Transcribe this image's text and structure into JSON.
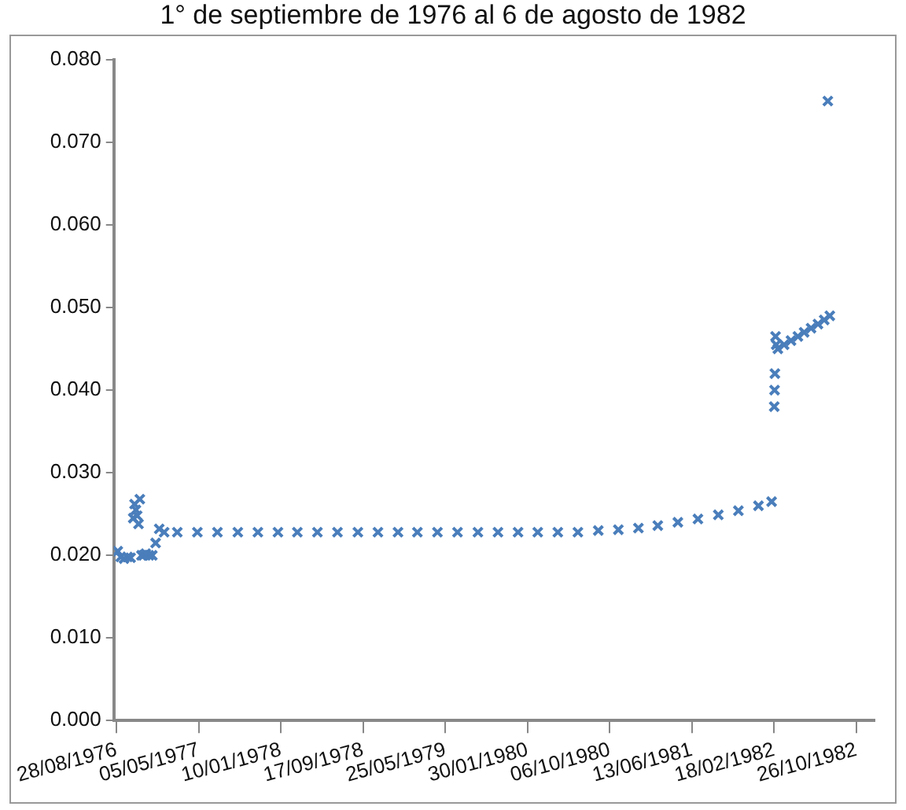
{
  "chart_data": {
    "type": "scatter",
    "title": "1° de septiembre de 1976 al 6 de agosto de 1982",
    "marker": "cross",
    "grid": false,
    "legend": false,
    "xlim": [
      "1976-08-20",
      "1982-12-20"
    ],
    "ylim": [
      0,
      0.08
    ],
    "xticks": [
      {
        "value": "1976-08-28",
        "label": "28/08/1976"
      },
      {
        "value": "1977-05-05",
        "label": "05/05/1977"
      },
      {
        "value": "1978-01-10",
        "label": "10/01/1978"
      },
      {
        "value": "1978-09-17",
        "label": "17/09/1978"
      },
      {
        "value": "1979-05-25",
        "label": "25/05/1979"
      },
      {
        "value": "1980-01-30",
        "label": "30/01/1980"
      },
      {
        "value": "1980-10-06",
        "label": "06/10/1980"
      },
      {
        "value": "1981-06-13",
        "label": "13/06/1981"
      },
      {
        "value": "1982-02-18",
        "label": "18/02/1982"
      },
      {
        "value": "1982-10-26",
        "label": "26/10/1982"
      }
    ],
    "yticks": [
      {
        "value": 0,
        "label": "0.000"
      },
      {
        "value": 0.01,
        "label": "0.010"
      },
      {
        "value": 0.02,
        "label": "0.020"
      },
      {
        "value": 0.03,
        "label": "0.030"
      },
      {
        "value": 0.04,
        "label": "0.040"
      },
      {
        "value": 0.05,
        "label": "0.050"
      },
      {
        "value": 0.06,
        "label": "0.060"
      },
      {
        "value": 0.07,
        "label": "0.070"
      },
      {
        "value": 0.08,
        "label": "0.080"
      }
    ],
    "series": [
      {
        "color": "#4a7ebb",
        "x": [
          "1976-09-01",
          "1976-09-10",
          "1976-09-20",
          "1976-10-01",
          "1976-10-10",
          "1976-10-18",
          "1976-10-22",
          "1976-10-26",
          "1976-10-30",
          "1976-11-03",
          "1976-11-07",
          "1976-11-12",
          "1976-11-18",
          "1976-11-25",
          "1976-12-05",
          "1976-12-15",
          "1976-12-25",
          "1977-01-05",
          "1977-01-20",
          "1977-03-01",
          "1977-05-01",
          "1977-07-01",
          "1977-09-01",
          "1977-11-01",
          "1978-01-01",
          "1978-03-01",
          "1978-05-01",
          "1978-07-01",
          "1978-09-01",
          "1978-11-01",
          "1979-01-01",
          "1979-03-01",
          "1979-05-01",
          "1979-07-01",
          "1979-09-01",
          "1979-11-01",
          "1980-01-01",
          "1980-03-01",
          "1980-05-01",
          "1980-07-01",
          "1980-09-01",
          "1980-11-01",
          "1981-01-01",
          "1981-03-01",
          "1981-05-01",
          "1981-07-01",
          "1981-09-01",
          "1981-11-01",
          "1982-01-01",
          "1982-02-10",
          "1982-02-18",
          "1982-02-19",
          "1982-02-20",
          "1982-02-22",
          "1982-02-24",
          "1982-03-01",
          "1982-03-20",
          "1982-04-10",
          "1982-05-01",
          "1982-05-20",
          "1982-06-10",
          "1982-07-01",
          "1982-07-20",
          "1982-07-31",
          "1982-08-06"
        ],
        "values": [
          0.0205,
          0.0198,
          0.0196,
          0.0198,
          0.0197,
          0.0245,
          0.0262,
          0.0255,
          0.0248,
          0.0238,
          0.0268,
          0.02,
          0.02,
          0.0202,
          0.02,
          0.02,
          0.0215,
          0.0232,
          0.0228,
          0.0228,
          0.0228,
          0.0228,
          0.0228,
          0.0228,
          0.0228,
          0.0228,
          0.0228,
          0.0228,
          0.0228,
          0.0228,
          0.0228,
          0.0228,
          0.0228,
          0.0228,
          0.0228,
          0.0228,
          0.0228,
          0.0228,
          0.0228,
          0.0228,
          0.023,
          0.0231,
          0.0233,
          0.0236,
          0.024,
          0.0244,
          0.0249,
          0.0254,
          0.026,
          0.0265,
          0.038,
          0.04,
          0.042,
          0.0465,
          0.0455,
          0.045,
          0.0455,
          0.046,
          0.0465,
          0.047,
          0.0475,
          0.048,
          0.0485,
          0.075,
          0.049
        ]
      }
    ]
  }
}
